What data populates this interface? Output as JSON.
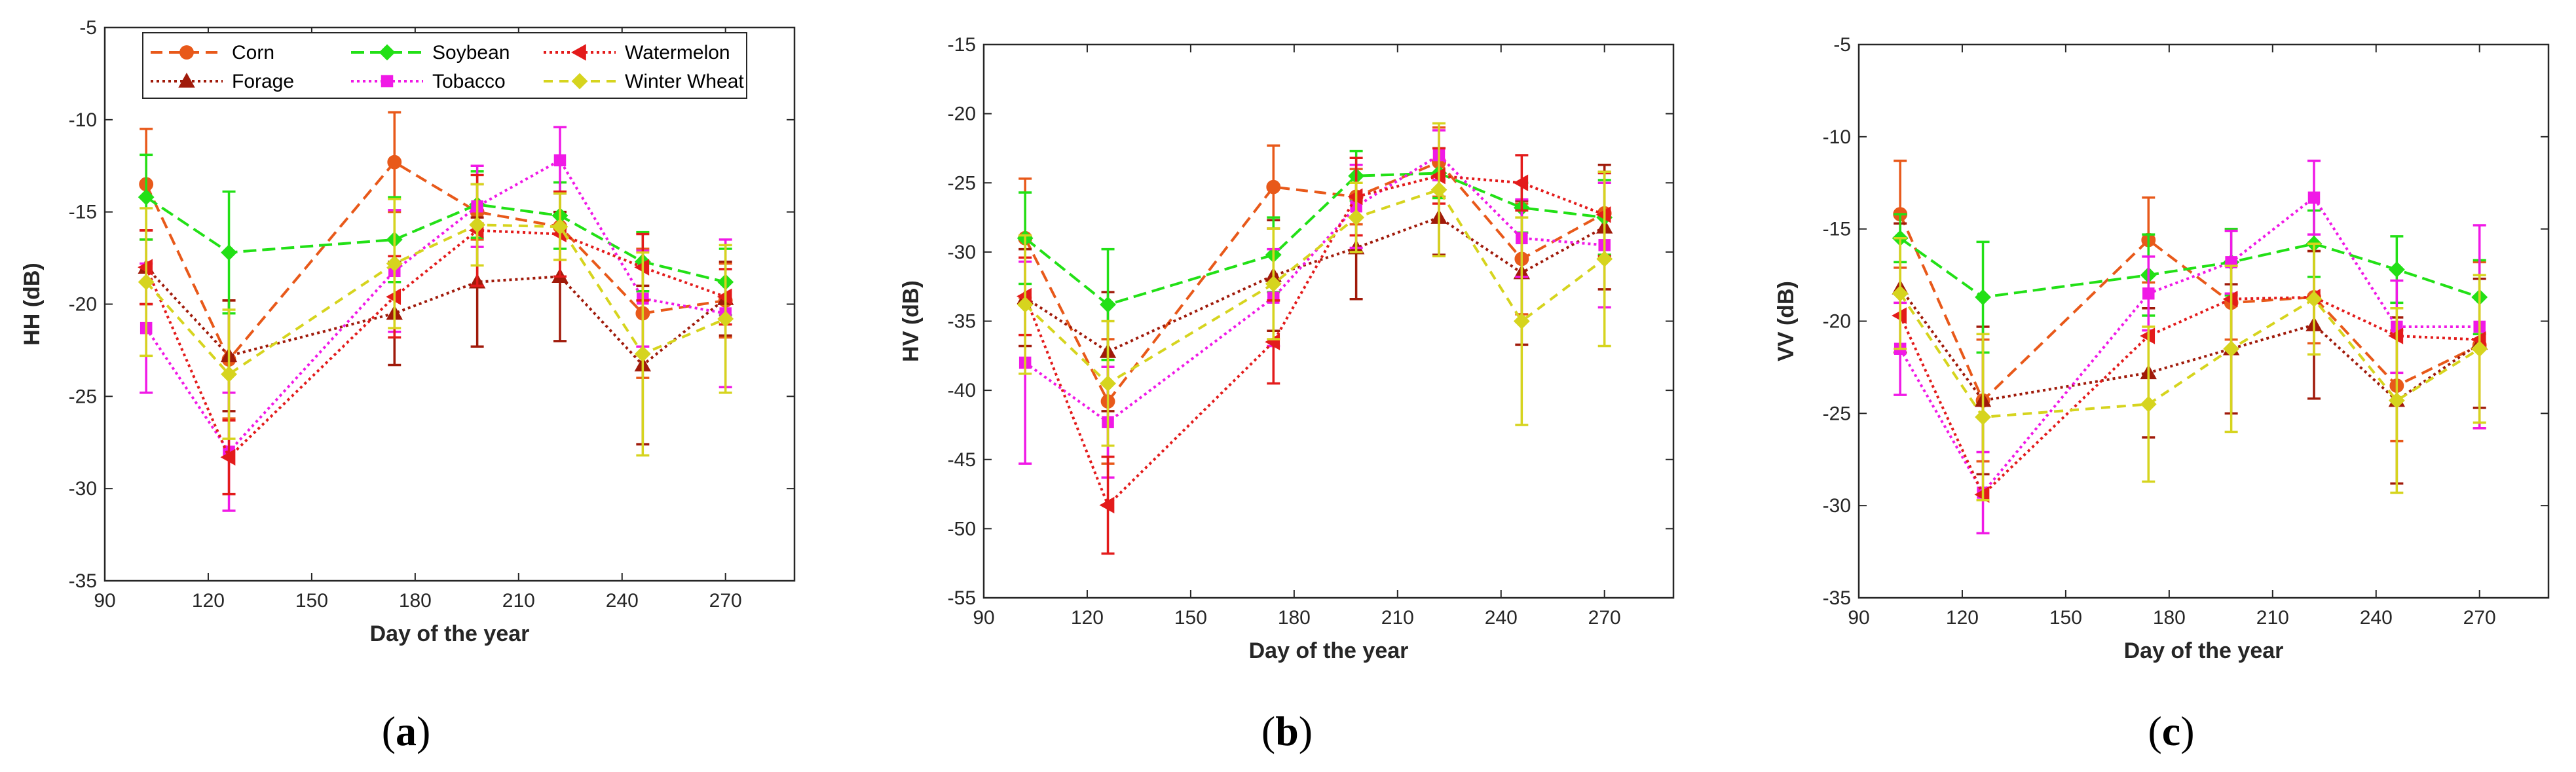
{
  "chart_data": [
    {
      "type": "line",
      "panel": "a",
      "caption_open": "(",
      "caption_letter": "a",
      "caption_close": ")",
      "xlabel": "Day of the year",
      "ylabel": "HH (dB)",
      "xlim": [
        90,
        290
      ],
      "ylim": [
        -35,
        -5
      ],
      "xticks": [
        90,
        120,
        150,
        180,
        210,
        240,
        270
      ],
      "yticks": [
        -35,
        -30,
        -25,
        -20,
        -15,
        -10,
        -5
      ],
      "legend": true,
      "series": [
        {
          "name": "Corn",
          "color": "#e8591a",
          "dash": "18,10",
          "marker": "circle",
          "x": [
            102,
            126,
            174,
            198,
            222,
            246,
            270
          ],
          "y": [
            -13.5,
            -23,
            -12.3,
            -15,
            -15.8,
            -20.5,
            -19.8
          ],
          "err": [
            3,
            3.2,
            2.7,
            1.5,
            1.8,
            3.5,
            2
          ]
        },
        {
          "name": "Forage",
          "color": "#a01a0a",
          "dash": "4,5",
          "marker": "triangle",
          "x": [
            102,
            126,
            174,
            198,
            222,
            246,
            270
          ],
          "y": [
            -18,
            -22.8,
            -20.5,
            -18.8,
            -18.5,
            -23.3,
            -19.7
          ],
          "err": [
            2,
            3,
            2.8,
            3.5,
            3.5,
            4.3,
            2
          ]
        },
        {
          "name": "Soybean",
          "color": "#22e016",
          "dash": "20,9",
          "marker": "diamond",
          "x": [
            102,
            126,
            174,
            198,
            222,
            246,
            270
          ],
          "y": [
            -14.2,
            -17.2,
            -16.5,
            -14.6,
            -15.2,
            -17.7,
            -18.8
          ],
          "err": [
            2.3,
            3.3,
            2.3,
            1.8,
            1.8,
            1.6,
            1.8
          ]
        },
        {
          "name": "Tobacco",
          "color": "#f019e6",
          "dash": "4,5",
          "marker": "square",
          "x": [
            102,
            126,
            174,
            198,
            222,
            246,
            270
          ],
          "y": [
            -21.3,
            -28,
            -18.2,
            -14.7,
            -12.2,
            -19.7,
            -20.5
          ],
          "err": [
            3.5,
            3.2,
            3.3,
            2.2,
            1.8,
            2.6,
            4
          ]
        },
        {
          "name": "Watermelon",
          "color": "#e31b1b",
          "dash": "4,5",
          "marker": "triangle-left",
          "x": [
            102,
            126,
            174,
            198,
            222,
            246,
            270
          ],
          "y": [
            -18,
            -28.3,
            -19.6,
            -16,
            -16.2,
            -18,
            -19.6
          ],
          "err": [
            2,
            2,
            2.2,
            3,
            2.3,
            1.8,
            1.5
          ]
        },
        {
          "name": "Winter Wheat",
          "color": "#d6d41e",
          "dash": "14,10",
          "marker": "diamond",
          "x": [
            102,
            126,
            174,
            198,
            222,
            246,
            270
          ],
          "y": [
            -18.8,
            -23.8,
            -17.8,
            -15.7,
            -15.8,
            -22.7,
            -20.8
          ],
          "err": [
            4,
            3.5,
            3.5,
            2.2,
            1.8,
            5.5,
            4
          ]
        }
      ]
    },
    {
      "type": "line",
      "panel": "b",
      "caption_open": "(",
      "caption_letter": "b",
      "caption_close": ")",
      "xlabel": "Day of the year",
      "ylabel": "HV (dB)",
      "xlim": [
        90,
        290
      ],
      "ylim": [
        -55,
        -15
      ],
      "xticks": [
        90,
        120,
        150,
        180,
        210,
        240,
        270
      ],
      "yticks": [
        -55,
        -50,
        -45,
        -40,
        -35,
        -30,
        -25,
        -20,
        -15
      ],
      "legend": false,
      "series": [
        {
          "name": "Corn",
          "color": "#e8591a",
          "dash": "18,10",
          "marker": "circle",
          "x": [
            102,
            126,
            174,
            198,
            222,
            246,
            270
          ],
          "y": [
            -29,
            -40.8,
            -25.3,
            -26,
            -23.5,
            -30.5,
            -27.2
          ],
          "err": [
            4.3,
            4.5,
            3,
            2,
            2.5,
            4,
            3
          ]
        },
        {
          "name": "Forage",
          "color": "#a01a0a",
          "dash": "4,5",
          "marker": "triangle",
          "x": [
            102,
            126,
            174,
            198,
            222,
            246,
            270
          ],
          "y": [
            -33.3,
            -37.2,
            -31.7,
            -29.7,
            -27.5,
            -31.5,
            -28.2
          ],
          "err": [
            3.5,
            4.3,
            4,
            3.7,
            2.7,
            5.2,
            4.5
          ]
        },
        {
          "name": "Soybean",
          "color": "#22e016",
          "dash": "20,9",
          "marker": "diamond",
          "x": [
            102,
            126,
            174,
            198,
            222,
            246,
            270
          ],
          "y": [
            -29,
            -33.8,
            -30.2,
            -24.5,
            -24.3,
            -26.8,
            -27.5
          ],
          "err": [
            3.3,
            4,
            2.7,
            1.8,
            1.8,
            1.8,
            2.7
          ]
        },
        {
          "name": "Tobacco",
          "color": "#f019e6",
          "dash": "4,5",
          "marker": "square",
          "x": [
            102,
            126,
            174,
            198,
            222,
            246,
            270
          ],
          "y": [
            -38,
            -42.3,
            -33.3,
            -26.7,
            -23,
            -29,
            -29.5
          ],
          "err": [
            7.3,
            4,
            3.5,
            3,
            1.8,
            2.8,
            4.5
          ]
        },
        {
          "name": "Watermelon",
          "color": "#e31b1b",
          "dash": "4,5",
          "marker": "triangle-left",
          "x": [
            102,
            126,
            174,
            198,
            222,
            246,
            270
          ],
          "y": [
            -33.2,
            -48.3,
            -36.5,
            -26,
            -24.5,
            -25,
            -27.3
          ],
          "err": [
            2.8,
            3.5,
            3,
            2.8,
            2,
            2,
            3
          ]
        },
        {
          "name": "Winter Wheat",
          "color": "#d6d41e",
          "dash": "14,10",
          "marker": "diamond",
          "x": [
            102,
            126,
            174,
            198,
            222,
            246,
            270
          ],
          "y": [
            -33.8,
            -39.5,
            -32.3,
            -27.5,
            -25.5,
            -35,
            -30.5
          ],
          "err": [
            5,
            4.5,
            4,
            2.5,
            4.8,
            7.5,
            6.3
          ]
        }
      ]
    },
    {
      "type": "line",
      "panel": "c",
      "caption_open": "(",
      "caption_letter": "c",
      "caption_close": ")",
      "xlabel": "Day of the year",
      "ylabel": "VV (dB)",
      "xlim": [
        90,
        290
      ],
      "ylim": [
        -35,
        -5
      ],
      "xticks": [
        90,
        120,
        150,
        180,
        210,
        240,
        270
      ],
      "yticks": [
        -35,
        -30,
        -25,
        -20,
        -15,
        -10,
        -5
      ],
      "legend": false,
      "series": [
        {
          "name": "Corn",
          "color": "#e8591a",
          "dash": "18,10",
          "marker": "circle",
          "x": [
            102,
            126,
            174,
            198,
            222,
            246,
            270
          ],
          "y": [
            -14.2,
            -24.3,
            -15.6,
            -19,
            -18.7,
            -23.5,
            -21.3
          ],
          "err": [
            2.9,
            3.3,
            2.3,
            2,
            2.5,
            3,
            4.5
          ]
        },
        {
          "name": "Forage",
          "color": "#a01a0a",
          "dash": "4,5",
          "marker": "triangle",
          "x": [
            102,
            126,
            174,
            198,
            222,
            246,
            270
          ],
          "y": [
            -18.2,
            -24.3,
            -22.8,
            -21.5,
            -20.2,
            -24.3,
            -21.2
          ],
          "err": [
            3.5,
            4,
            3.5,
            3.5,
            4,
            4.5,
            3.5
          ]
        },
        {
          "name": "Soybean",
          "color": "#22e016",
          "dash": "20,9",
          "marker": "diamond",
          "x": [
            102,
            126,
            174,
            198,
            222,
            246,
            270
          ],
          "y": [
            -15.5,
            -18.7,
            -17.5,
            -16.8,
            -15.8,
            -17.2,
            -18.7
          ],
          "err": [
            1.3,
            3,
            2.2,
            1.8,
            1.8,
            1.8,
            2
          ]
        },
        {
          "name": "Tobacco",
          "color": "#f019e6",
          "dash": "4,5",
          "marker": "square",
          "x": [
            102,
            126,
            174,
            198,
            222,
            246,
            270
          ],
          "y": [
            -21.5,
            -29.3,
            -18.5,
            -16.8,
            -13.3,
            -20.3,
            -20.3
          ],
          "err": [
            2.5,
            2.2,
            2,
            1.7,
            2,
            2.5,
            5.5
          ]
        },
        {
          "name": "Watermelon",
          "color": "#e31b1b",
          "dash": "4,5",
          "marker": "triangle-left",
          "x": [
            102,
            126,
            174,
            198,
            222,
            246,
            270
          ],
          "y": [
            -19.7,
            -29.4,
            -20.8,
            -18.8,
            -18.7,
            -20.8,
            -21
          ]
        },
        {
          "name": "Winter Wheat",
          "color": "#d6d41e",
          "dash": "14,10",
          "marker": "diamond",
          "x": [
            102,
            126,
            174,
            198,
            222,
            246,
            270
          ],
          "y": [
            -18.5,
            -25.2,
            -24.5,
            -21.5,
            -18.8,
            -24.3,
            -21.5
          ],
          "err": [
            3,
            4.5,
            4.2,
            4.5,
            3,
            5,
            4
          ]
        }
      ]
    }
  ]
}
